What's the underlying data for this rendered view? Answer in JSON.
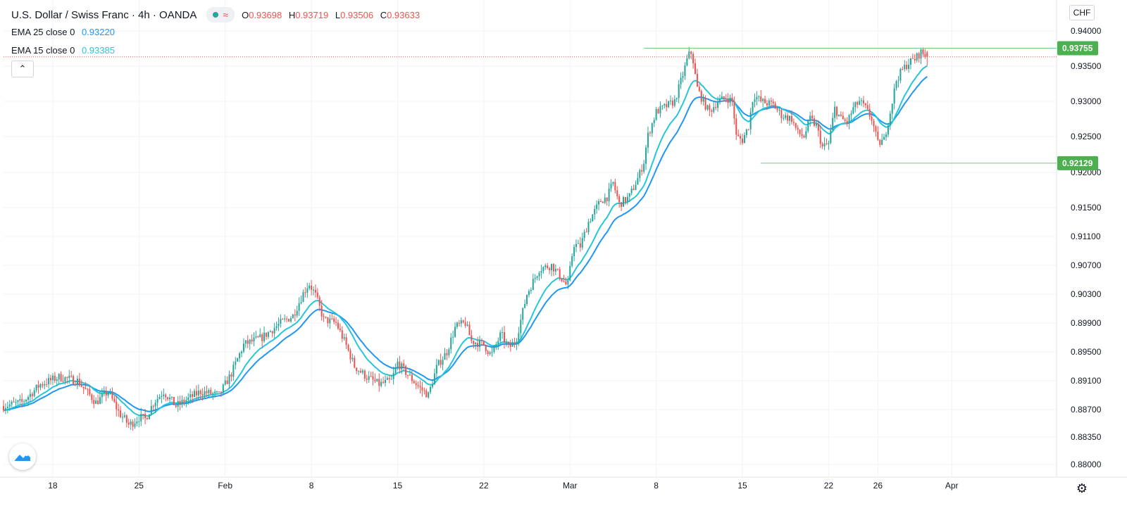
{
  "header": {
    "symbol": "U.S. Dollar / Swiss Franc · 4h · OANDA",
    "ohlc": {
      "open_label": "O",
      "open": "0.93698",
      "high_label": "H",
      "high": "0.93719",
      "low_label": "L",
      "low": "0.93506",
      "close_label": "C",
      "close": "0.93633"
    },
    "ema25": {
      "label": "EMA 25 close 0",
      "value": "0.93220"
    },
    "ema15": {
      "label": "EMA 15 close 0",
      "value": "0.93385"
    },
    "collapse_icon": "chevron-up-icon",
    "currency_button": "CHF"
  },
  "colors": {
    "up": "#26a69a",
    "down": "#ef5350",
    "ema25": "#2196f3",
    "ema15": "#26c6da",
    "level_line": "#81c784",
    "level_label_bg": "#4caf50",
    "grid": "#f0f3fa"
  },
  "chart_data": {
    "type": "candlestick",
    "instrument": "U.S. Dollar / Swiss Franc",
    "timeframe": "4h",
    "source": "OANDA",
    "y_axis": {
      "ticks": [
        "0.94000",
        "0.93500",
        "0.93000",
        "0.92500",
        "0.92000",
        "0.91500",
        "0.91100",
        "0.90700",
        "0.90300",
        "0.89900",
        "0.89500",
        "0.89100",
        "0.88700",
        "0.88350",
        "0.88000"
      ],
      "ylim": [
        0.879,
        0.9405
      ],
      "scale": "linear"
    },
    "x_axis": {
      "ticks": [
        "18",
        "25",
        "Feb",
        "8",
        "15",
        "22",
        "Mar",
        "8",
        "15",
        "22",
        "26",
        "Apr"
      ],
      "tick_days": [
        18,
        25,
        32,
        39,
        46,
        53,
        60,
        67,
        74,
        81,
        85,
        91
      ],
      "range_days": [
        14,
        97.5
      ],
      "day_note": "day numbers counted from Jan 1 = 1"
    },
    "levels": [
      {
        "price": 0.93755,
        "label": "0.93755",
        "from_day": 66,
        "color": "#81c784"
      },
      {
        "price": 0.92129,
        "label": "0.92129",
        "from_day": 75.5,
        "color": "#81c784"
      }
    ],
    "current_price_line": 0.93633,
    "anchors_close": [
      [
        14,
        0.8875
      ],
      [
        15.5,
        0.888
      ],
      [
        17,
        0.8905
      ],
      [
        18.5,
        0.8915
      ],
      [
        20,
        0.891
      ],
      [
        21.5,
        0.888
      ],
      [
        22.5,
        0.8895
      ],
      [
        23.3,
        0.8868
      ],
      [
        24.2,
        0.885
      ],
      [
        25,
        0.886
      ],
      [
        25.5,
        0.8858
      ],
      [
        26.2,
        0.888
      ],
      [
        27,
        0.8895
      ],
      [
        28,
        0.8875
      ],
      [
        29,
        0.8885
      ],
      [
        30,
        0.8895
      ],
      [
        31.5,
        0.889
      ],
      [
        32.5,
        0.892
      ],
      [
        33.5,
        0.896
      ],
      [
        35,
        0.897
      ],
      [
        36.5,
        0.899
      ],
      [
        37.5,
        0.9
      ],
      [
        38.3,
        0.903
      ],
      [
        38.8,
        0.9045
      ],
      [
        39.3,
        0.903
      ],
      [
        40,
        0.8995
      ],
      [
        41,
        0.899
      ],
      [
        41.8,
        0.896
      ],
      [
        42.5,
        0.893
      ],
      [
        43.5,
        0.8915
      ],
      [
        44.5,
        0.8905
      ],
      [
        45.5,
        0.891
      ],
      [
        46,
        0.8935
      ],
      [
        47,
        0.8915
      ],
      [
        47.8,
        0.89
      ],
      [
        48.5,
        0.889
      ],
      [
        49.2,
        0.893
      ],
      [
        50,
        0.895
      ],
      [
        50.7,
        0.8985
      ],
      [
        51.5,
        0.899
      ],
      [
        52,
        0.8965
      ],
      [
        53,
        0.896
      ],
      [
        53.6,
        0.8945
      ],
      [
        54.4,
        0.8975
      ],
      [
        55,
        0.8955
      ],
      [
        55.6,
        0.8965
      ],
      [
        56.5,
        0.903
      ],
      [
        57.5,
        0.9065
      ],
      [
        58.5,
        0.907
      ],
      [
        59.2,
        0.9055
      ],
      [
        59.8,
        0.904
      ],
      [
        60.3,
        0.91
      ],
      [
        60.8,
        0.9095
      ],
      [
        61.5,
        0.913
      ],
      [
        62.5,
        0.916
      ],
      [
        63,
        0.9165
      ],
      [
        63.5,
        0.9185
      ],
      [
        64,
        0.9155
      ],
      [
        64.8,
        0.9165
      ],
      [
        65.6,
        0.9195
      ],
      [
        66,
        0.9215
      ],
      [
        66.3,
        0.925
      ],
      [
        67,
        0.9285
      ],
      [
        68,
        0.9295
      ],
      [
        68.5,
        0.93
      ],
      [
        69.2,
        0.934
      ],
      [
        69.6,
        0.9365
      ],
      [
        69.9,
        0.937
      ],
      [
        70.3,
        0.932
      ],
      [
        70.8,
        0.93
      ],
      [
        71.3,
        0.9285
      ],
      [
        72,
        0.93
      ],
      [
        72.7,
        0.9305
      ],
      [
        73.2,
        0.93
      ],
      [
        73.5,
        0.925
      ],
      [
        74,
        0.9245
      ],
      [
        74.5,
        0.9265
      ],
      [
        74.9,
        0.931
      ],
      [
        75.5,
        0.93
      ],
      [
        76.5,
        0.9295
      ],
      [
        77.2,
        0.928
      ],
      [
        78,
        0.9275
      ],
      [
        78.5,
        0.9255
      ],
      [
        79,
        0.925
      ],
      [
        79.5,
        0.9275
      ],
      [
        80,
        0.9265
      ],
      [
        80.5,
        0.9235
      ],
      [
        81,
        0.924
      ],
      [
        81.5,
        0.929
      ],
      [
        82,
        0.9275
      ],
      [
        82.5,
        0.927
      ],
      [
        83,
        0.929
      ],
      [
        83.5,
        0.93
      ],
      [
        84,
        0.929
      ],
      [
        84.5,
        0.9275
      ],
      [
        85,
        0.924
      ],
      [
        85.5,
        0.9245
      ],
      [
        86,
        0.9285
      ],
      [
        86.5,
        0.933
      ],
      [
        87,
        0.9345
      ],
      [
        87.5,
        0.9355
      ],
      [
        88,
        0.936
      ],
      [
        88.5,
        0.937
      ],
      [
        89,
        0.9363
      ]
    ],
    "last_bar": {
      "open": 0.93698,
      "high": 0.93719,
      "low": 0.93506,
      "close": 0.93633
    },
    "ema": [
      {
        "name": "EMA 25 close 0",
        "period": 25,
        "last": 0.9322,
        "color": "#2196f3"
      },
      {
        "name": "EMA 15 close 0",
        "period": 15,
        "last": 0.93385,
        "color": "#26c6da"
      }
    ],
    "grid": true
  }
}
